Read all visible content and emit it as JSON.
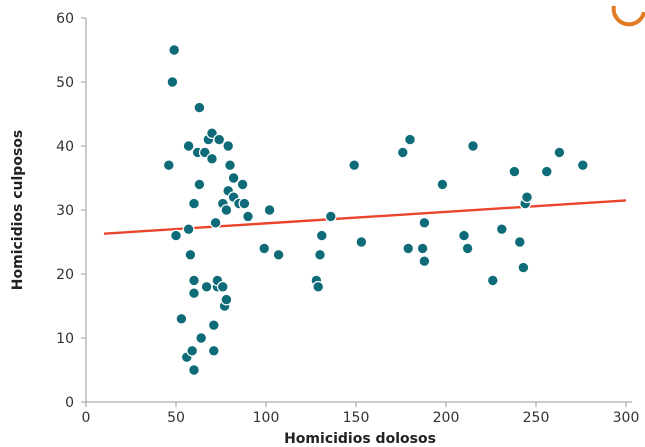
{
  "chart_data": {
    "type": "scatter",
    "xlabel": "Homicidios dolosos",
    "ylabel": "Homicidios culposos",
    "xlim": [
      0,
      300
    ],
    "ylim": [
      0,
      60
    ],
    "x_ticks": [
      "0",
      "50",
      "100",
      "150",
      "200",
      "250",
      "300"
    ],
    "y_ticks": [
      "0",
      "10",
      "20",
      "30",
      "40",
      "50",
      "60"
    ],
    "grid": false,
    "colors": {
      "points": "#0f6b78",
      "trend": "#e8452c",
      "logo": "#e07b22"
    },
    "points": [
      {
        "x": 46,
        "y": 37
      },
      {
        "x": 48,
        "y": 50
      },
      {
        "x": 49,
        "y": 55
      },
      {
        "x": 50,
        "y": 26
      },
      {
        "x": 53,
        "y": 13
      },
      {
        "x": 56,
        "y": 7
      },
      {
        "x": 57,
        "y": 27
      },
      {
        "x": 57,
        "y": 40
      },
      {
        "x": 58,
        "y": 23
      },
      {
        "x": 59,
        "y": 8
      },
      {
        "x": 60,
        "y": 31
      },
      {
        "x": 60,
        "y": 17
      },
      {
        "x": 60,
        "y": 19
      },
      {
        "x": 60,
        "y": 5
      },
      {
        "x": 62,
        "y": 39
      },
      {
        "x": 63,
        "y": 46
      },
      {
        "x": 63,
        "y": 34
      },
      {
        "x": 64,
        "y": 10
      },
      {
        "x": 66,
        "y": 39
      },
      {
        "x": 67,
        "y": 18
      },
      {
        "x": 68,
        "y": 41
      },
      {
        "x": 70,
        "y": 42
      },
      {
        "x": 70,
        "y": 38
      },
      {
        "x": 71,
        "y": 12
      },
      {
        "x": 71,
        "y": 8
      },
      {
        "x": 72,
        "y": 28
      },
      {
        "x": 73,
        "y": 18
      },
      {
        "x": 73,
        "y": 19
      },
      {
        "x": 74,
        "y": 41
      },
      {
        "x": 76,
        "y": 18
      },
      {
        "x": 76,
        "y": 31
      },
      {
        "x": 77,
        "y": 15
      },
      {
        "x": 78,
        "y": 30
      },
      {
        "x": 78,
        "y": 16
      },
      {
        "x": 79,
        "y": 33
      },
      {
        "x": 79,
        "y": 40
      },
      {
        "x": 80,
        "y": 37
      },
      {
        "x": 82,
        "y": 35
      },
      {
        "x": 82,
        "y": 32
      },
      {
        "x": 85,
        "y": 31
      },
      {
        "x": 87,
        "y": 34
      },
      {
        "x": 88,
        "y": 31
      },
      {
        "x": 90,
        "y": 29
      },
      {
        "x": 99,
        "y": 24
      },
      {
        "x": 102,
        "y": 30
      },
      {
        "x": 107,
        "y": 23
      },
      {
        "x": 128,
        "y": 19
      },
      {
        "x": 129,
        "y": 18
      },
      {
        "x": 130,
        "y": 23
      },
      {
        "x": 131,
        "y": 26
      },
      {
        "x": 136,
        "y": 29
      },
      {
        "x": 149,
        "y": 37
      },
      {
        "x": 153,
        "y": 25
      },
      {
        "x": 176,
        "y": 39
      },
      {
        "x": 179,
        "y": 24
      },
      {
        "x": 180,
        "y": 41
      },
      {
        "x": 187,
        "y": 24
      },
      {
        "x": 188,
        "y": 28
      },
      {
        "x": 188,
        "y": 22
      },
      {
        "x": 198,
        "y": 34
      },
      {
        "x": 210,
        "y": 26
      },
      {
        "x": 212,
        "y": 24
      },
      {
        "x": 215,
        "y": 40
      },
      {
        "x": 226,
        "y": 19
      },
      {
        "x": 231,
        "y": 27
      },
      {
        "x": 238,
        "y": 36
      },
      {
        "x": 241,
        "y": 25
      },
      {
        "x": 243,
        "y": 21
      },
      {
        "x": 244,
        "y": 31
      },
      {
        "x": 245,
        "y": 32
      },
      {
        "x": 256,
        "y": 36
      },
      {
        "x": 263,
        "y": 39
      },
      {
        "x": 276,
        "y": 37
      }
    ],
    "trendline": {
      "x": [
        10,
        300
      ],
      "y": [
        26.3,
        31.5
      ]
    }
  }
}
